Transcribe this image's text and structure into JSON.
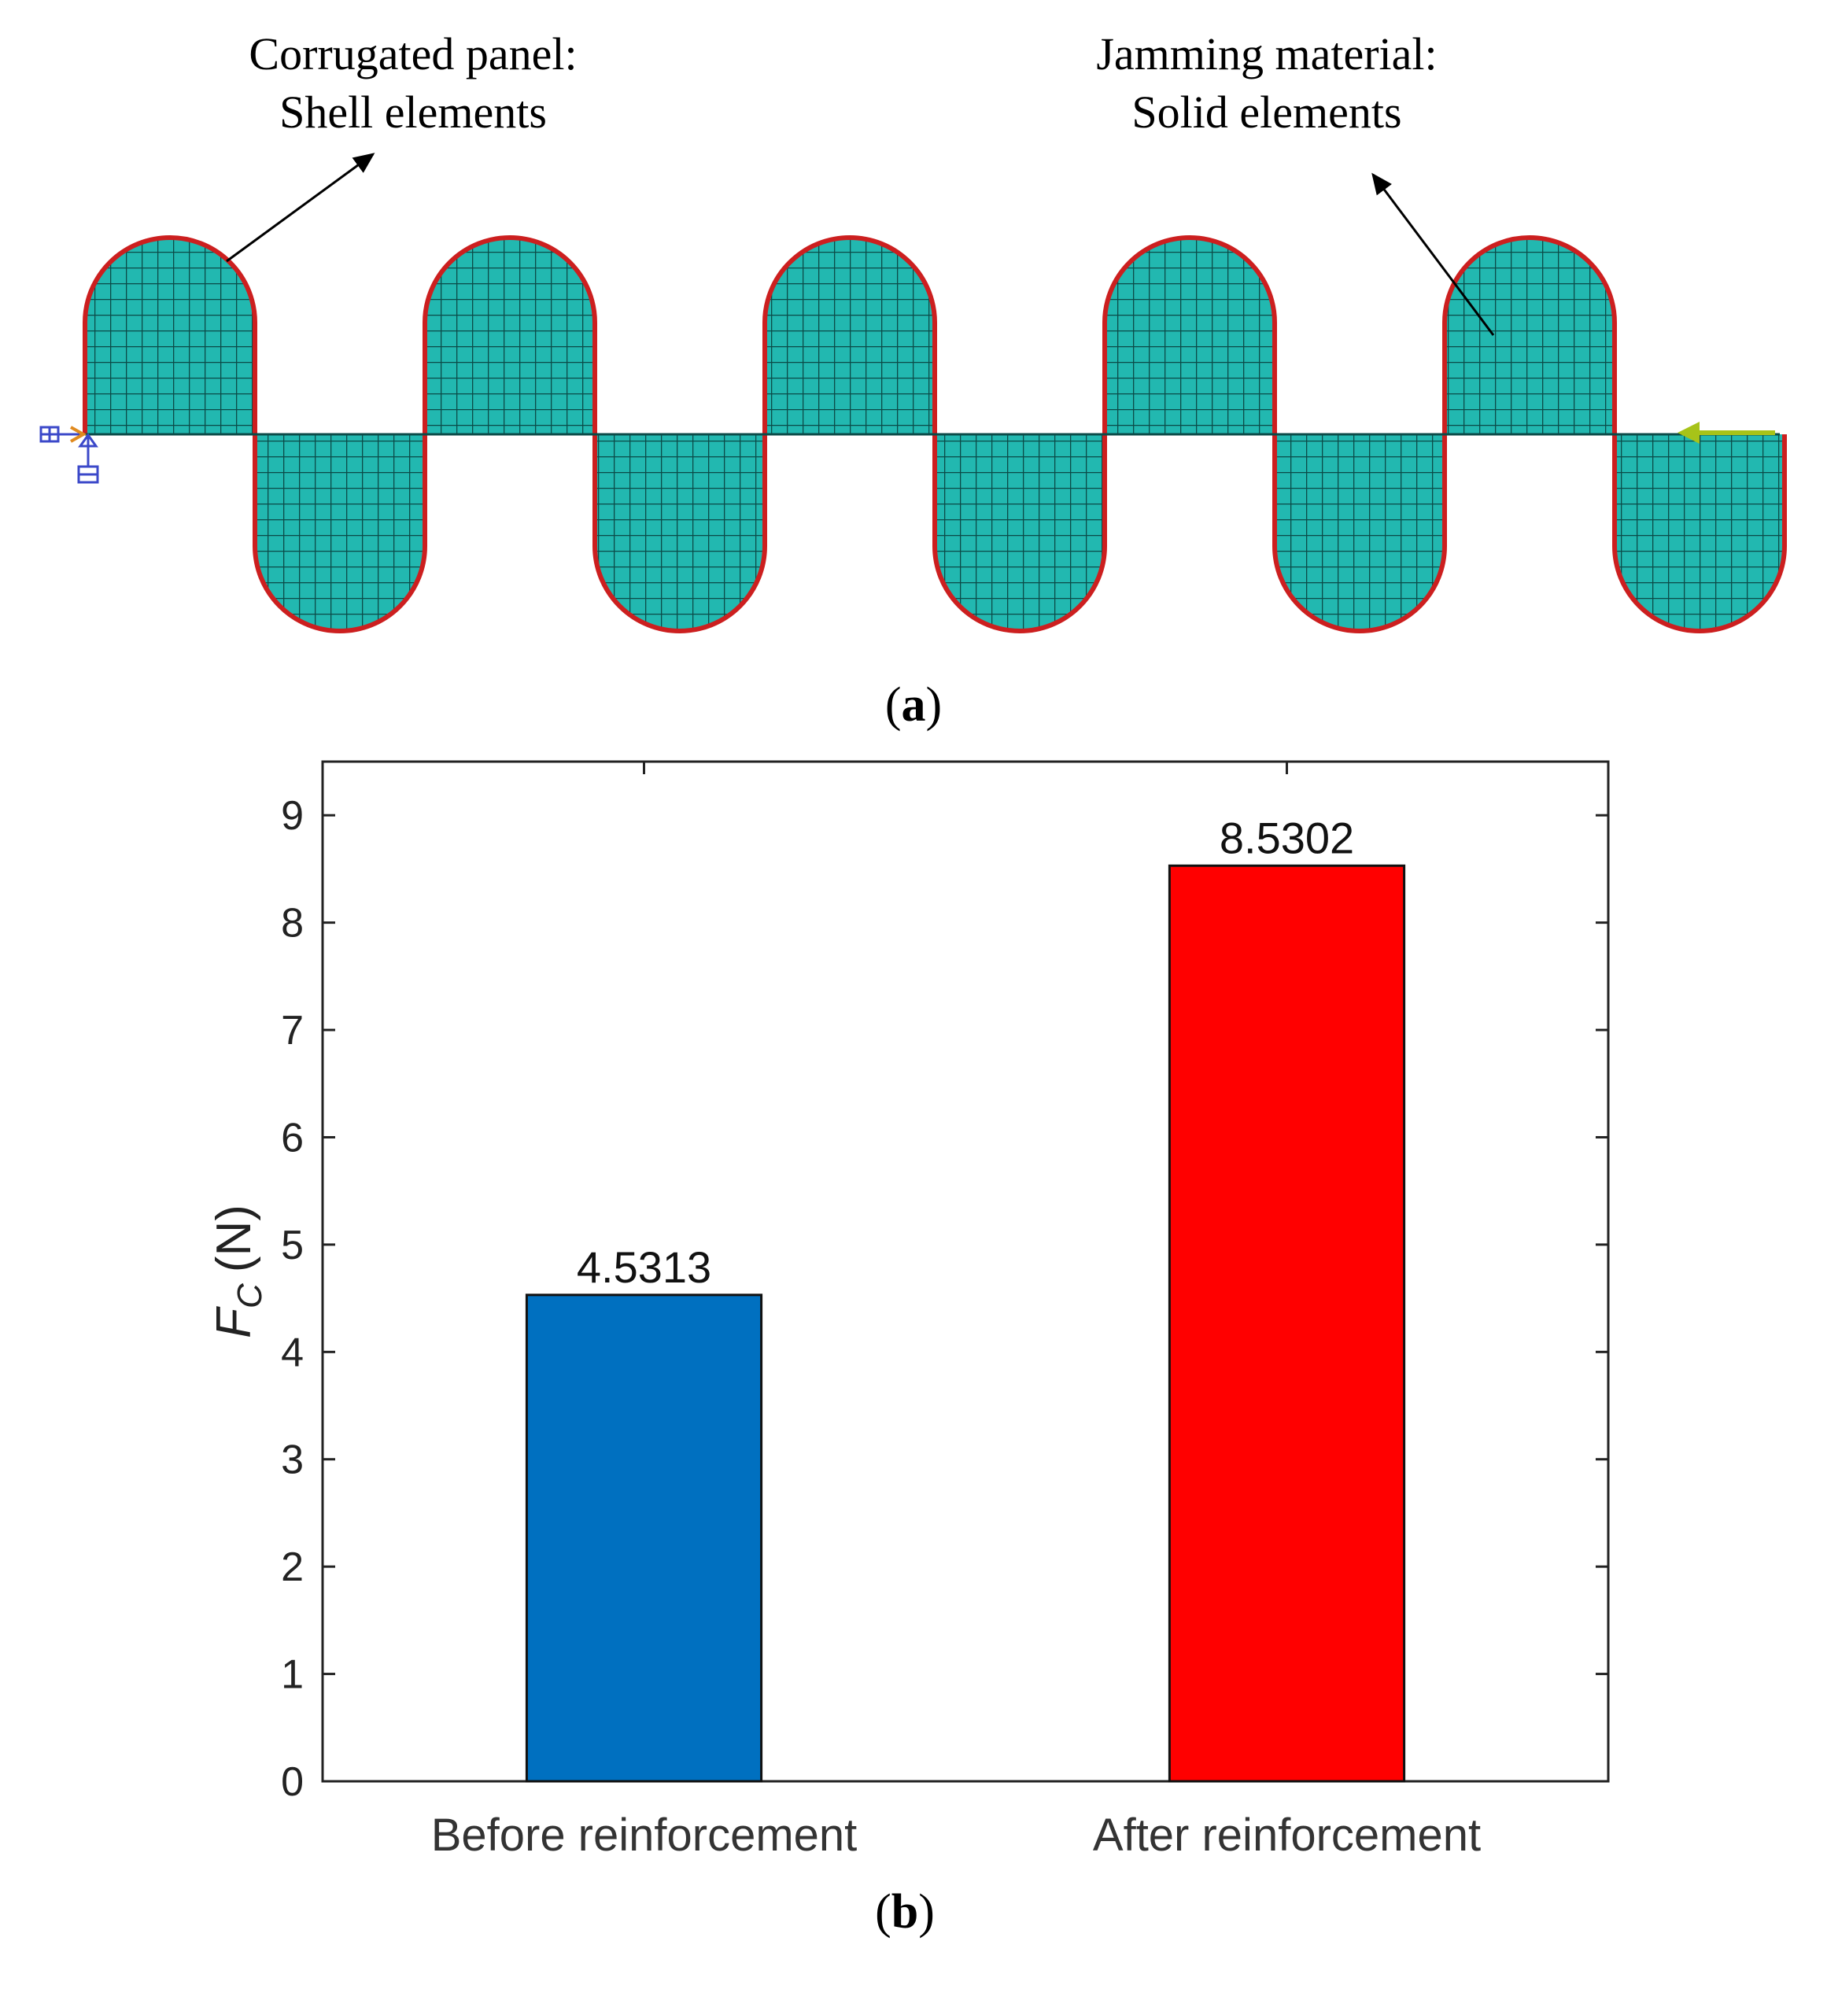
{
  "figure_a": {
    "annotations": {
      "left_line1": "Corrugated panel:",
      "left_line2": "Shell elements",
      "right_line1": "Jamming material:",
      "right_line2": "Solid elements"
    },
    "panel_label": "a",
    "colors": {
      "mesh_fill": "#22b8b0",
      "mesh_line": "#0b4b48",
      "shell_edge": "#cc1f1f",
      "load_arrow": "#a7c319",
      "support": "#3b48c9"
    }
  },
  "figure_b": {
    "panel_label": "b"
  },
  "chart_data": {
    "type": "bar",
    "categories": [
      "Before reinforcement",
      "After reinforcement"
    ],
    "values": [
      4.5313,
      8.5302
    ],
    "data_labels": [
      "4.5313",
      "8.5302"
    ],
    "colors": [
      "#0070c0",
      "#ff0000"
    ],
    "ylabel": "F",
    "ylabel_subscript": "C",
    "ylabel_unit": "(N)",
    "ylim": [
      0,
      9.5
    ],
    "yticks": [
      0,
      1,
      2,
      3,
      4,
      5,
      6,
      7,
      8,
      9
    ],
    "ytick_labels": [
      "0",
      "1",
      "2",
      "3",
      "4",
      "5",
      "6",
      "7",
      "8",
      "9"
    ],
    "grid": false
  }
}
